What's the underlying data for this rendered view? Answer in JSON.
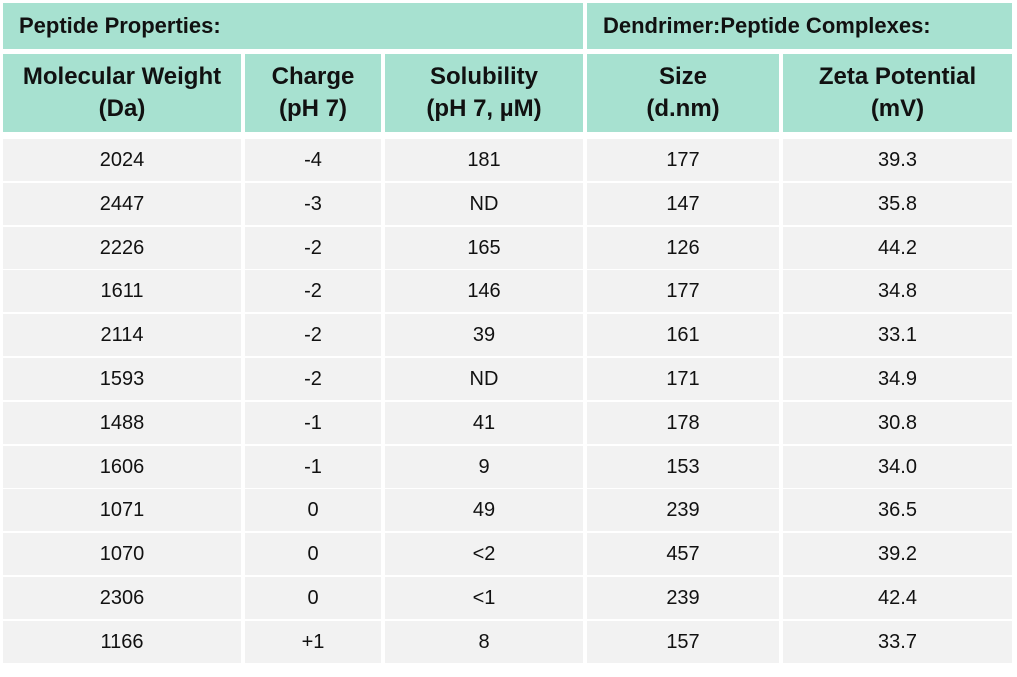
{
  "groups": [
    "Peptide Properties:",
    "Dendrimer:Peptide Complexes:"
  ],
  "columns": [
    {
      "line1": "Molecular Weight",
      "line2": "(Da)"
    },
    {
      "line1": "Charge",
      "line2": "(pH 7)"
    },
    {
      "line1": "Solubility",
      "line2": "(pH 7, µM)"
    },
    {
      "line1": "Size",
      "line2": "(d.nm)"
    },
    {
      "line1": "Zeta Potential",
      "line2": "(mV)"
    }
  ],
  "rows": [
    [
      "2024",
      "-4",
      "181",
      "177",
      "39.3"
    ],
    [
      "2447",
      "-3",
      "ND",
      "147",
      "35.8"
    ],
    [
      "2226",
      "-2",
      "165",
      "126",
      "44.2"
    ],
    [
      "1611",
      "-2",
      "146",
      "177",
      "34.8"
    ],
    [
      "2114",
      "-2",
      "39",
      "161",
      "33.1"
    ],
    [
      "1593",
      "-2",
      "ND",
      "171",
      "34.9"
    ],
    [
      "1488",
      "-1",
      "41",
      "178",
      "30.8"
    ],
    [
      "1606",
      "-1",
      "9",
      "153",
      "34.0"
    ],
    [
      "1071",
      "0",
      "49",
      "239",
      "36.5"
    ],
    [
      "1070",
      "0",
      "<2",
      "457",
      "39.2"
    ],
    [
      "2306",
      "0",
      "<1",
      "239",
      "42.4"
    ],
    [
      "1166",
      "+1",
      "8",
      "157",
      "33.7"
    ]
  ],
  "colors": {
    "header_bg": "#a7e1d0",
    "row_bg": "#f2f2f2"
  }
}
